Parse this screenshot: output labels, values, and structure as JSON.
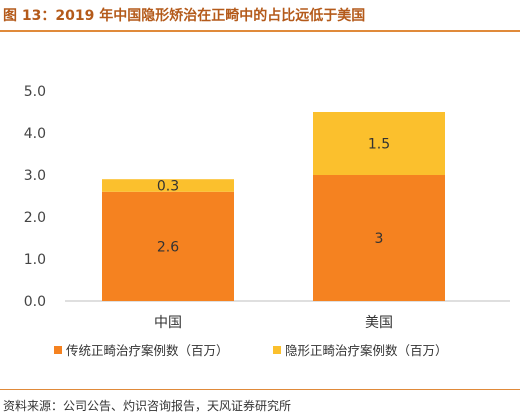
{
  "figure": {
    "title": "图 13：2019 年中国隐形矫治在正畸中的占比远低于美国",
    "source": "资料来源：公司公告、灼识咨询报告，天风证券研究所"
  },
  "colors": {
    "title": "#b45a1a",
    "rule": "#e08a3a",
    "series_1": "#f58220",
    "series_2": "#fbc02d"
  },
  "chart_data": {
    "type": "bar",
    "stacked": true,
    "categories": [
      "中国",
      "美国"
    ],
    "series": [
      {
        "name": "传统正畸治疗案例数（百万）",
        "values": [
          2.6,
          3
        ],
        "labels": [
          "2.6",
          "3"
        ]
      },
      {
        "name": "隐形正畸治疗案例数（百万）",
        "values": [
          0.3,
          1.5
        ],
        "labels": [
          "0.3",
          "1.5"
        ]
      }
    ],
    "yticks": [
      "0.0",
      "1.0",
      "2.0",
      "3.0",
      "4.0",
      "5.0"
    ],
    "ylim": [
      0,
      5
    ],
    "grid": false,
    "legend": "bottom"
  }
}
